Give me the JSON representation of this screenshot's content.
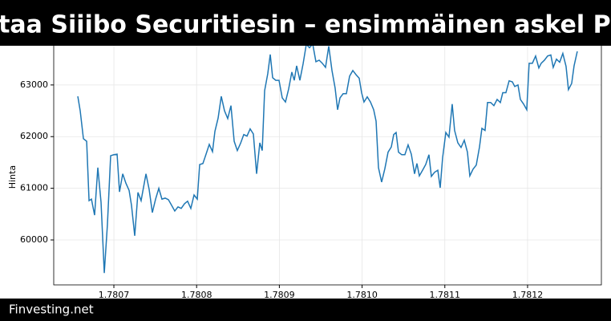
{
  "chart_data": {
    "type": "line",
    "title": "Ostaa Siiibo Securitiesin – ensimmäinen askel Proj",
    "footer": "Finvesting.net",
    "y_label": "Hinta",
    "color": "#1f77b4",
    "grid": true,
    "xlim": [
      1.7806273,
      1.7812892
    ],
    "xticks": [
      1.7807,
      1.7808,
      1.7809,
      1.781,
      1.7811,
      1.7812
    ],
    "xtick_labels": [
      "1.7807",
      "1.7808",
      "1.7809",
      "1.7810",
      "1.7811",
      "1.7812"
    ],
    "ylim": [
      59130,
      63930
    ],
    "yticks": [
      60000,
      61000,
      62000,
      63000
    ],
    "x": [
      1.7806564,
      1.7806593,
      1.7806632,
      1.7806671,
      1.78067,
      1.7806729,
      1.7806767,
      1.7806806,
      1.7806845,
      1.7806884,
      1.7806922,
      1.7806961,
      1.7807,
      1.7807039,
      1.7807068,
      1.7807107,
      1.7807145,
      1.7807184,
      1.7807213,
      1.7807252,
      1.7807291,
      1.7807329,
      1.7807388,
      1.7807426,
      1.7807465,
      1.7807504,
      1.7807543,
      1.7807581,
      1.780762,
      1.7807659,
      1.7807698,
      1.7807736,
      1.7807775,
      1.7807814,
      1.7807853,
      1.7807891,
      1.780793,
      1.7807969,
      1.7808008,
      1.7808037,
      1.7808076,
      1.7808114,
      1.7808153,
      1.7808192,
      1.7808221,
      1.780826,
      1.7808298,
      1.7808337,
      1.7808376,
      1.7808415,
      1.7808454,
      1.7808492,
      1.7808531,
      1.780857,
      1.7808609,
      1.7808647,
      1.7808686,
      1.7808725,
      1.7808764,
      1.7808793,
      1.7808822,
      1.780886,
      1.780889,
      1.7808919,
      1.7808957,
      1.7808996,
      1.7809035,
      1.7809074,
      1.7809112,
      1.7809151,
      1.780918,
      1.7809209,
      1.7809248,
      1.7809287,
      1.7809326,
      1.7809364,
      1.7809403,
      1.7809442,
      1.7809481,
      1.7809519,
      1.7809558,
      1.7809597,
      1.7809636,
      1.7809674,
      1.7809704,
      1.7809733,
      1.7809771,
      1.780981,
      1.7809849,
      1.7809888,
      1.7809926,
      1.7809965,
      1.7809994,
      1.7810023,
      1.7810062,
      1.7810101,
      1.781014,
      1.7810169,
      1.7810198,
      1.7810236,
      1.7810275,
      1.7810314,
      1.7810353,
      1.7810382,
      1.7810411,
      1.781044,
      1.7810479,
      1.7810517,
      1.7810556,
      1.7810595,
      1.7810634,
      1.7810663,
      1.7810692,
      1.7810731,
      1.7810769,
      1.7810808,
      1.7810837,
      1.7810876,
      1.7810915,
      1.7810944,
      1.7810973,
      1.7811012,
      1.781105,
      1.7811089,
      1.7811118,
      1.7811157,
      1.7811196,
      1.7811235,
      1.7811273,
      1.7811302,
      1.7811341,
      1.781138,
      1.7811419,
      1.7811448,
      1.7811486,
      1.7811516,
      1.7811554,
      1.7811593,
      1.7811632,
      1.7811671,
      1.78117,
      1.7811738,
      1.7811777,
      1.7811816,
      1.7811845,
      1.7811884,
      1.7811913,
      1.7811952,
      1.781199,
      1.7812019,
      1.7812058,
      1.7812097,
      1.7812136,
      1.7812165,
      1.7812204,
      1.7812242,
      1.7812281,
      1.781231,
      1.7812349,
      1.7812388,
      1.7812426,
      1.7812465,
      1.7812494,
      1.7812533,
      1.7812562,
      1.7812601
    ],
    "values": [
      62780,
      62500,
      61960,
      61910,
      60760,
      60790,
      60480,
      61400,
      60730,
      59360,
      60300,
      61630,
      61650,
      61660,
      60930,
      61280,
      61100,
      60960,
      60670,
      60080,
      60920,
      60760,
      61280,
      60980,
      60530,
      60790,
      61000,
      60790,
      60810,
      60780,
      60670,
      60560,
      60640,
      60610,
      60700,
      60750,
      60610,
      60870,
      60790,
      61460,
      61480,
      61660,
      61850,
      61710,
      62100,
      62360,
      62780,
      62500,
      62350,
      62600,
      61910,
      61730,
      61870,
      62040,
      62010,
      62150,
      62050,
      61280,
      61880,
      61730,
      62890,
      63220,
      63590,
      63140,
      63090,
      63090,
      62750,
      62670,
      62920,
      63250,
      63090,
      63370,
      63090,
      63410,
      63790,
      63720,
      63795,
      63450,
      63480,
      63420,
      63340,
      63750,
      63280,
      62940,
      62520,
      62750,
      62830,
      62830,
      63170,
      63280,
      63200,
      63130,
      62850,
      62670,
      62770,
      62670,
      62520,
      62300,
      61400,
      61120,
      61380,
      61700,
      61800,
      62040,
      62080,
      61700,
      61650,
      61650,
      61840,
      61660,
      61280,
      61480,
      61240,
      61350,
      61460,
      61650,
      61230,
      61310,
      61350,
      61010,
      61590,
      62080,
      61990,
      62630,
      62120,
      61880,
      61790,
      61930,
      61700,
      61240,
      61370,
      61450,
      61800,
      62160,
      62120,
      62660,
      62660,
      62600,
      62720,
      62660,
      62850,
      62850,
      63080,
      63060,
      62970,
      63000,
      62720,
      62630,
      62520,
      63420,
      63420,
      63560,
      63330,
      63420,
      63480,
      63560,
      63580,
      63340,
      63500,
      63440,
      63610,
      63360,
      62910,
      63030,
      63370,
      63650
    ]
  }
}
